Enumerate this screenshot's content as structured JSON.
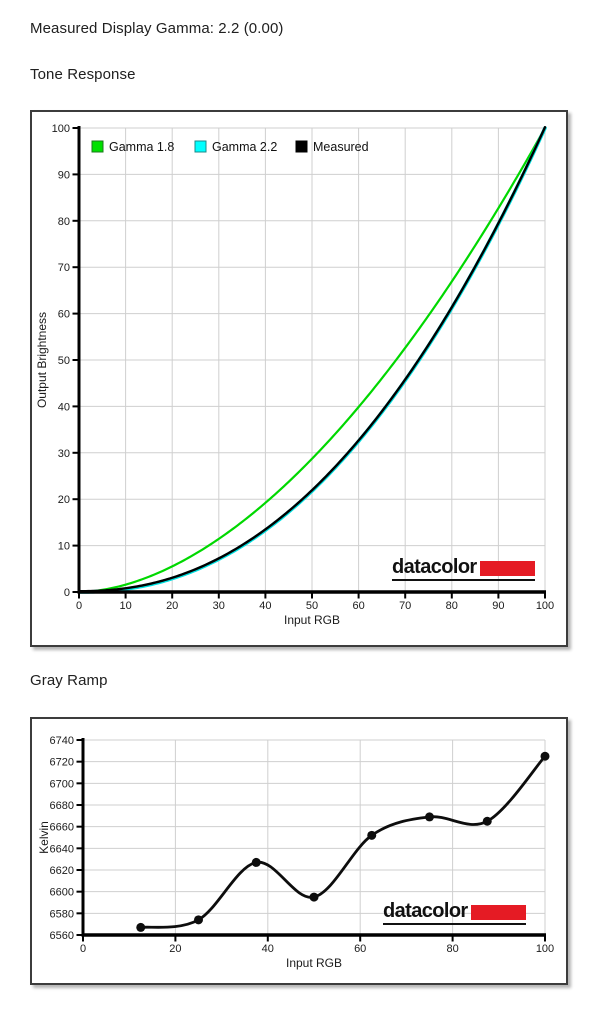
{
  "page": {
    "heading": "Measured Display Gamma: 2.2 (0.00)",
    "section1_title": "Tone Response",
    "section2_title": "Gray Ramp"
  },
  "brand": {
    "logo_text": "datacolor",
    "logo_color": "#e51b24"
  },
  "colors": {
    "grid": "#cfcfcf",
    "axis": "#000000",
    "tick_text": "#1b1b1b",
    "gamma18": "#00d800",
    "gamma22": "#00e0e0",
    "measured": "#000000"
  },
  "chart_data": [
    {
      "id": "tone-response",
      "type": "line",
      "title": "Tone Response",
      "xlabel": "Input RGB",
      "ylabel": "Output Brightness",
      "xlim": [
        0,
        100
      ],
      "ylim": [
        0,
        100
      ],
      "xticks": [
        0,
        10,
        20,
        30,
        40,
        50,
        60,
        70,
        80,
        90,
        100
      ],
      "yticks": [
        0,
        10,
        20,
        30,
        40,
        50,
        60,
        70,
        80,
        90,
        100
      ],
      "grid": true,
      "legend_position": "top-left-inside",
      "series": [
        {
          "name": "Gamma 1.8",
          "color": "#00d800",
          "legend_fill": "#00e000",
          "legend_border": "#1b7a1b",
          "gamma": 1.8
        },
        {
          "name": "Gamma 2.2",
          "color": "#00e0e0",
          "legend_fill": "#00ffff",
          "legend_border": "#1b8a8a",
          "gamma": 2.2
        },
        {
          "name": "Measured",
          "color": "#000000",
          "legend_fill": "#000000",
          "legend_border": "#000000",
          "gamma": 2.2
        }
      ]
    },
    {
      "id": "gray-ramp",
      "type": "scatter-line",
      "title": "Gray Ramp",
      "xlabel": "Input RGB",
      "ylabel": "Kelvin",
      "xlim": [
        0,
        100
      ],
      "ylim": [
        6560,
        6740
      ],
      "xticks": [
        0,
        20,
        40,
        60,
        80,
        100
      ],
      "yticks": [
        6560,
        6580,
        6600,
        6620,
        6640,
        6660,
        6680,
        6700,
        6720,
        6740
      ],
      "grid": true,
      "x": [
        12.5,
        25,
        37.5,
        50,
        62.5,
        75,
        87.5,
        100
      ],
      "y": [
        6567,
        6574,
        6627,
        6595,
        6652,
        6669,
        6665,
        6725
      ],
      "color": "#0d0d0d"
    }
  ]
}
